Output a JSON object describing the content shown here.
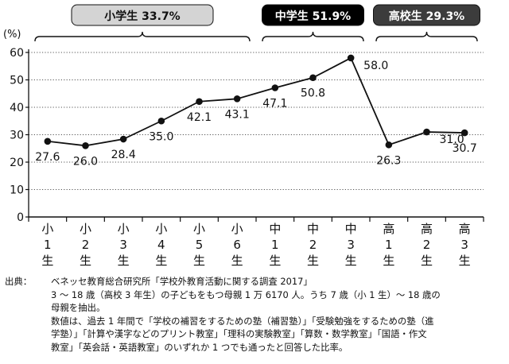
{
  "chart_data": {
    "type": "line",
    "categories": [
      [
        "小",
        "1",
        "生"
      ],
      [
        "小",
        "2",
        "生"
      ],
      [
        "小",
        "3",
        "生"
      ],
      [
        "小",
        "4",
        "生"
      ],
      [
        "小",
        "5",
        "生"
      ],
      [
        "小",
        "6",
        "生"
      ],
      [
        "中",
        "1",
        "生"
      ],
      [
        "中",
        "2",
        "生"
      ],
      [
        "中",
        "3",
        "生"
      ],
      [
        "高",
        "1",
        "生"
      ],
      [
        "高",
        "2",
        "生"
      ],
      [
        "高",
        "3",
        "生"
      ]
    ],
    "values": [
      27.6,
      26.0,
      28.4,
      35.0,
      42.1,
      43.1,
      47.1,
      50.8,
      58.0,
      26.3,
      31.0,
      30.7
    ],
    "value_labels": [
      "27.6",
      "26.0",
      "28.4",
      "35.0",
      "42.1",
      "43.1",
      "47.1",
      "50.8",
      "58.0",
      "26.3",
      "31.0",
      "30.7"
    ],
    "ylabel": "(%)",
    "ylim": [
      0,
      60
    ],
    "yticks": [
      0,
      10,
      20,
      30,
      40,
      50,
      60
    ],
    "grid": true,
    "line_color": "#111111",
    "groups": [
      {
        "label": "小学生 33.7%",
        "from": 0,
        "to": 5,
        "fill": "#d4d4d4",
        "text_color": "#111111"
      },
      {
        "label": "中学生 51.9%",
        "from": 6,
        "to": 8,
        "fill": "#000000",
        "text_color": "#ffffff"
      },
      {
        "label": "高校生 29.3%",
        "from": 9,
        "to": 11,
        "fill": "#3c3c3c",
        "text_color": "#ffffff"
      }
    ]
  },
  "source_note": {
    "lead": "出典：",
    "line1": "ベネッセ教育総合研究所「学校外教育活動に関する調査 2017」",
    "line2": "3 ～ 18 歳（高校 3 年生）の子どもをもつ母親 1 万 6170 人。うち 7 歳（小 1 生）～ 18 歳の",
    "line3": "母親を抽出。",
    "line4": "数値は、過去 1 年間で「学校の補習をするための塾（補習塾）」「受験勉強をするための塾（進",
    "line5": "学塾）」「計算や漢字などのプリント教室」「理科の実験教室」「算数・数学教室」「国語・作文",
    "line6": "教室」「英会話・英語教室」のいずれか 1 つでも通ったと回答した比率。"
  }
}
